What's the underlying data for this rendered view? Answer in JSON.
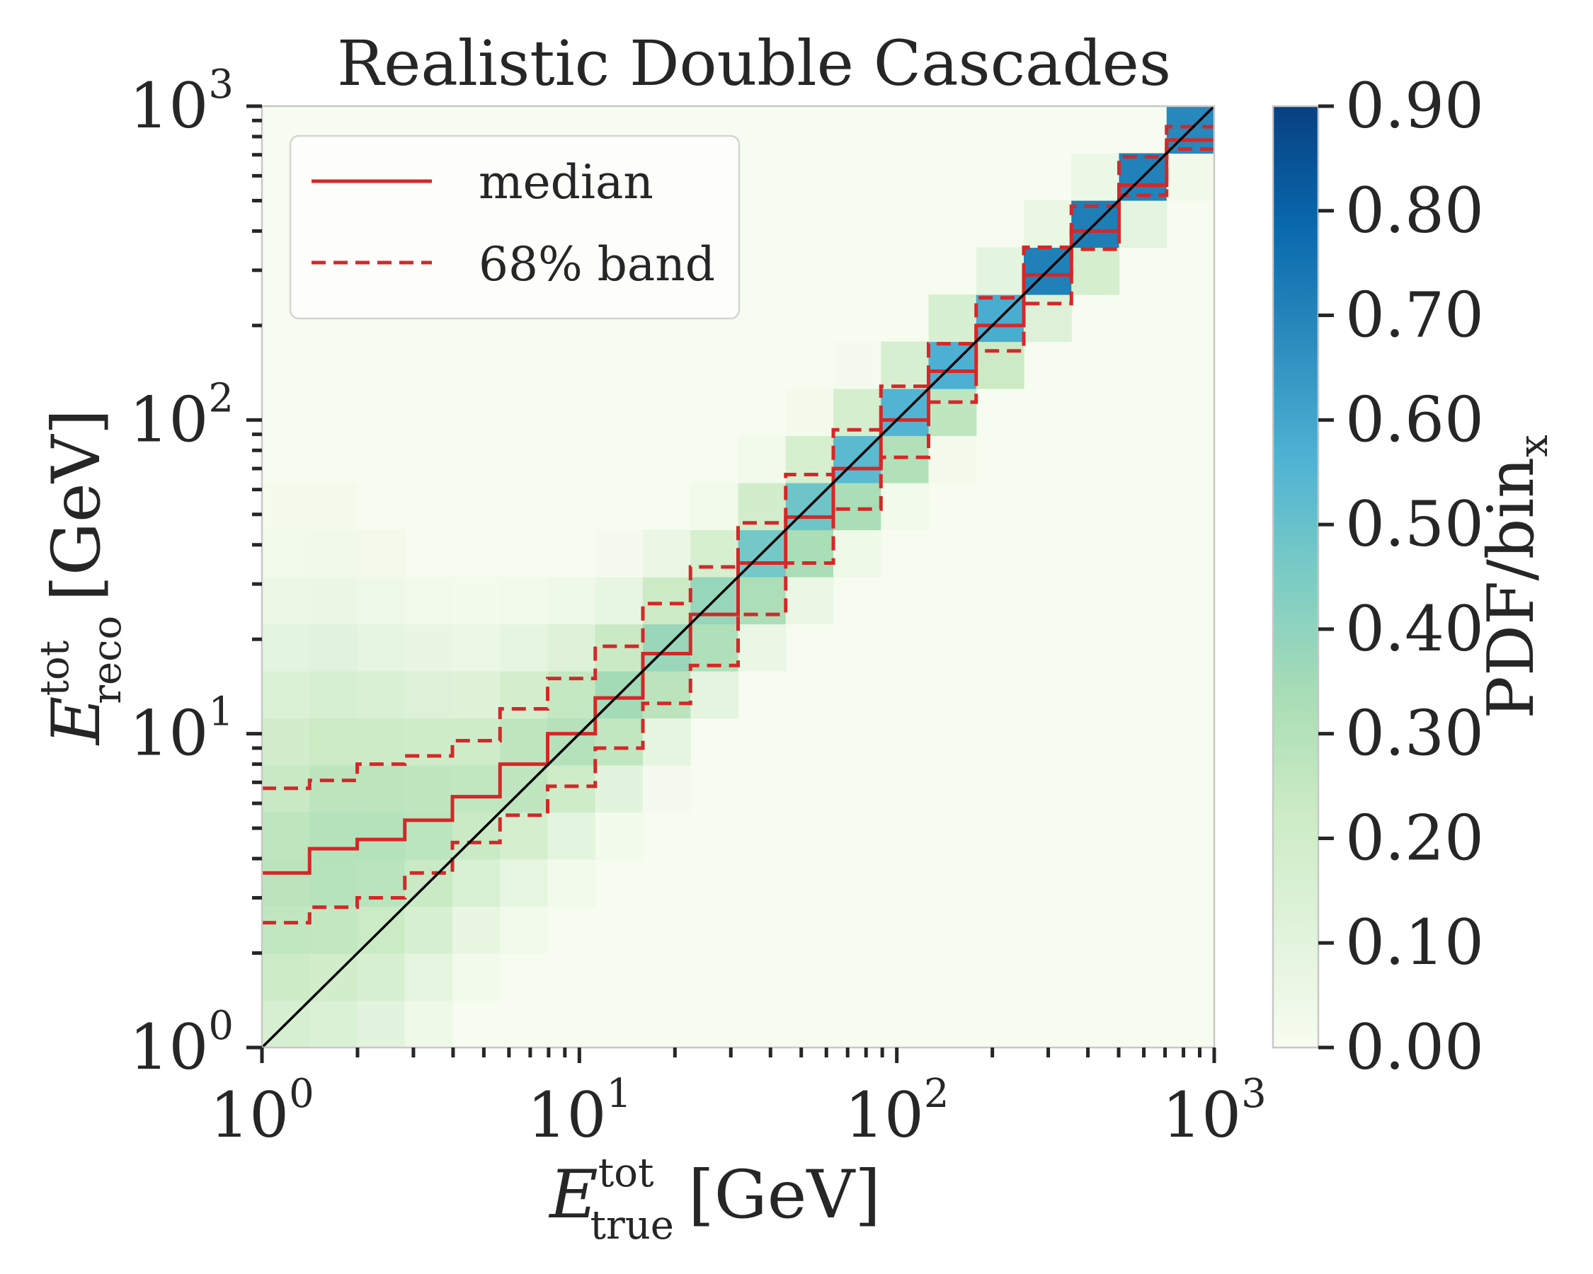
{
  "chart_data": {
    "type": "heatmap",
    "title": "Realistic Double Cascades",
    "xlabel": {
      "symbol": "E",
      "superscript": "tot",
      "subscript": "true",
      "unit": "[GeV]"
    },
    "ylabel": {
      "symbol": "E",
      "superscript": "tot",
      "subscript": "reco",
      "unit": "[GeV]"
    },
    "x_scale": "log",
    "y_scale": "log",
    "xlim": [
      1,
      1000
    ],
    "ylim": [
      1,
      1000
    ],
    "x_ticks": [
      {
        "value": 1,
        "base": "10",
        "exp": "0"
      },
      {
        "value": 10,
        "base": "10",
        "exp": "1"
      },
      {
        "value": 100,
        "base": "10",
        "exp": "2"
      },
      {
        "value": 1000,
        "base": "10",
        "exp": "3"
      }
    ],
    "y_ticks": [
      {
        "value": 1,
        "base": "10",
        "exp": "0"
      },
      {
        "value": 10,
        "base": "10",
        "exp": "1"
      },
      {
        "value": 100,
        "base": "10",
        "exp": "2"
      },
      {
        "value": 1000,
        "base": "10",
        "exp": "3"
      }
    ],
    "colorbar": {
      "label": "PDF/bin",
      "label_subscript": "x",
      "range": [
        0,
        0.9
      ],
      "ticks": [
        "0.00",
        "0.10",
        "0.20",
        "0.30",
        "0.40",
        "0.50",
        "0.60",
        "0.70",
        "0.80",
        "0.90"
      ],
      "colormap": [
        "#f7fcf0",
        "#e0f3db",
        "#ccebc5",
        "#a8ddb5",
        "#7bccc4",
        "#4eb3d3",
        "#2b8cbe",
        "#0868ac",
        "#084081"
      ]
    },
    "legend": {
      "placement": "top-left",
      "entries": [
        {
          "label": "median",
          "style": "solid",
          "color": "#d62728"
        },
        {
          "label": "68% band",
          "style": "dashed",
          "color": "#d62728"
        }
      ]
    },
    "diagonal": {
      "x": [
        1,
        1000
      ],
      "y": [
        1,
        1000
      ],
      "color": "#000000"
    },
    "bins": {
      "n": 20,
      "log_min": 0,
      "log_max": 3
    },
    "heatmap_peak": [
      0.28,
      0.3,
      0.3,
      0.28,
      0.26,
      0.28,
      0.3,
      0.35,
      0.38,
      0.4,
      0.48,
      0.5,
      0.55,
      0.57,
      0.58,
      0.6,
      0.72,
      0.75,
      0.78,
      0.9
    ],
    "heatmap_spread": [
      3.2,
      3.0,
      2.6,
      2.2,
      1.8,
      1.6,
      1.4,
      1.2,
      1.1,
      1.0,
      0.9,
      0.85,
      0.8,
      0.75,
      0.7,
      0.6,
      0.5,
      0.5,
      0.4,
      0.3
    ],
    "median": [
      3.6,
      4.3,
      4.6,
      5.3,
      6.3,
      8.0,
      10.0,
      13.0,
      18.0,
      24.0,
      35.0,
      49.0,
      70.0,
      100.0,
      143.0,
      200.0,
      290.0,
      400.0,
      560.0,
      780.0
    ],
    "band_low": [
      2.5,
      2.8,
      3.0,
      3.6,
      4.5,
      5.5,
      6.8,
      9.0,
      12.5,
      16.5,
      24.0,
      35.0,
      52.0,
      76.0,
      114.0,
      166.0,
      235.0,
      350.0,
      520.0,
      730.0
    ],
    "band_high": [
      6.7,
      7.1,
      8.0,
      8.5,
      9.5,
      12.0,
      15.0,
      19.0,
      26.0,
      34.0,
      47.0,
      67.0,
      93.0,
      128.0,
      175.0,
      245.0,
      355.0,
      480.0,
      690.0,
      860.0
    ]
  }
}
